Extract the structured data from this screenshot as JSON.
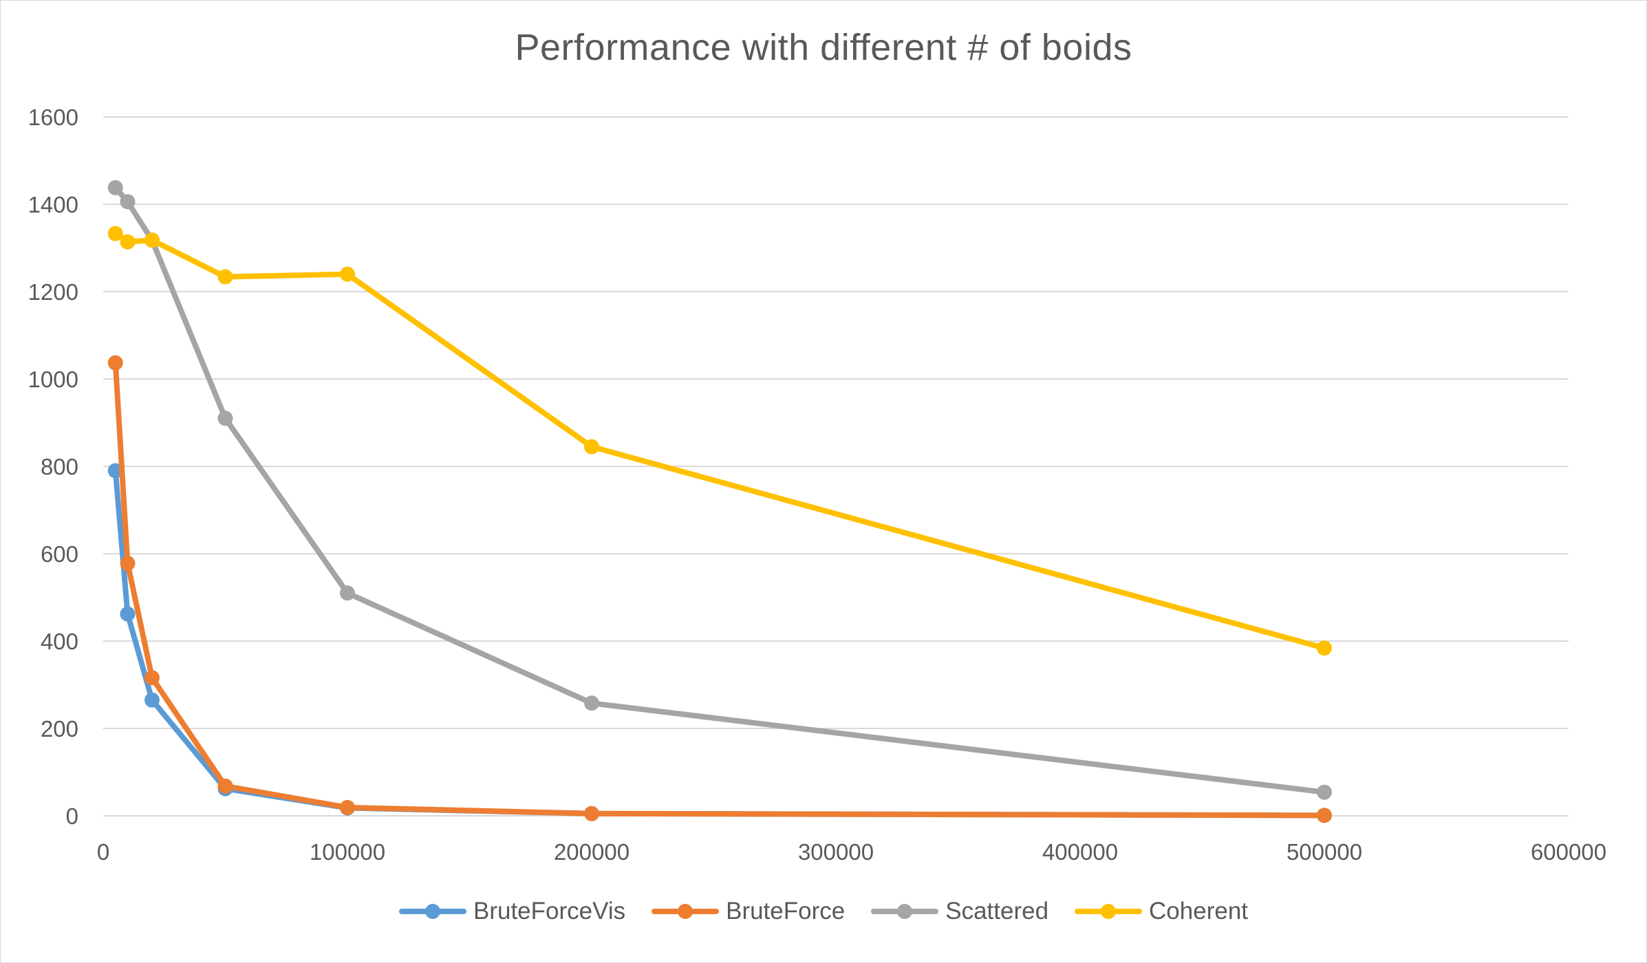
{
  "chart_data": {
    "type": "line",
    "title": "Performance with different # of boids",
    "xlabel": "",
    "ylabel": "",
    "xlim": [
      0,
      600000
    ],
    "ylim": [
      0,
      1600
    ],
    "x_ticks": [
      0,
      100000,
      200000,
      300000,
      400000,
      500000,
      600000
    ],
    "y_ticks": [
      0,
      200,
      400,
      600,
      800,
      1000,
      1200,
      1400,
      1600
    ],
    "grid": "horizontal",
    "legend_position": "bottom",
    "series": [
      {
        "name": "BruteForceVis",
        "color": "#5b9bd5",
        "x": [
          5000,
          10000,
          20000,
          50000,
          100000,
          200000,
          500000
        ],
        "values": [
          790,
          462,
          265,
          62,
          18,
          5,
          1
        ]
      },
      {
        "name": "BruteForce",
        "color": "#ed7d31",
        "x": [
          5000,
          10000,
          20000,
          50000,
          100000,
          200000,
          500000
        ],
        "values": [
          1037,
          578,
          316,
          68,
          19,
          5,
          1
        ]
      },
      {
        "name": "Scattered",
        "color": "#a5a5a5",
        "x": [
          5000,
          10000,
          20000,
          50000,
          100000,
          200000,
          500000
        ],
        "values": [
          1438,
          1406,
          1318,
          910,
          510,
          258,
          54
        ]
      },
      {
        "name": "Coherent",
        "color": "#ffc000",
        "x": [
          5000,
          10000,
          20000,
          50000,
          100000,
          200000,
          500000
        ],
        "values": [
          1333,
          1314,
          1318,
          1234,
          1240,
          845,
          384
        ]
      }
    ]
  },
  "style": {
    "gridline_color": "#d9d9d9",
    "text_color": "#595959"
  }
}
